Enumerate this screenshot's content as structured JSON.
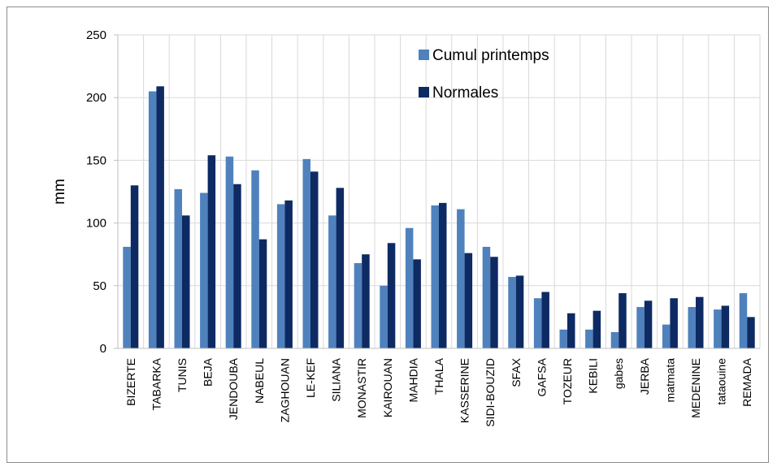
{
  "chart_data": {
    "type": "bar",
    "title": "",
    "xlabel": "",
    "ylabel": "mm",
    "ylim": [
      0,
      250
    ],
    "yticks": [
      0,
      50,
      100,
      150,
      200,
      250
    ],
    "grid": true,
    "legend_position": "top-right",
    "categories": [
      "BIZERTE",
      "TABARKA",
      "TUNIS",
      "BEJA",
      "JENDOUBA",
      "NABEUL",
      "ZAGHOUAN",
      "LE-KEF",
      "SILIANA",
      "MONASTIR",
      "KAIROUAN",
      "MAHDIA",
      "THALA",
      "KASSERINE",
      "SIDI-BOUZID",
      "SFAX",
      "GAFSA",
      "TOZEUR",
      "KEBILI",
      "gabes",
      "JERBA",
      "matmata",
      "MEDENINE",
      "tataouine",
      "REMADA"
    ],
    "series": [
      {
        "name": "Cumul printemps",
        "color": "#4f81bd",
        "values": [
          81,
          205,
          127,
          124,
          153,
          142,
          115,
          151,
          106,
          68,
          50,
          96,
          114,
          111,
          81,
          57,
          40,
          15,
          15,
          13,
          33,
          19,
          33,
          31,
          44
        ]
      },
      {
        "name": "Normales",
        "color": "#0d2a63",
        "values": [
          130,
          209,
          106,
          154,
          131,
          87,
          118,
          141,
          128,
          75,
          84,
          71,
          116,
          76,
          73,
          58,
          45,
          28,
          30,
          44,
          38,
          40,
          41,
          34,
          25
        ]
      }
    ]
  }
}
